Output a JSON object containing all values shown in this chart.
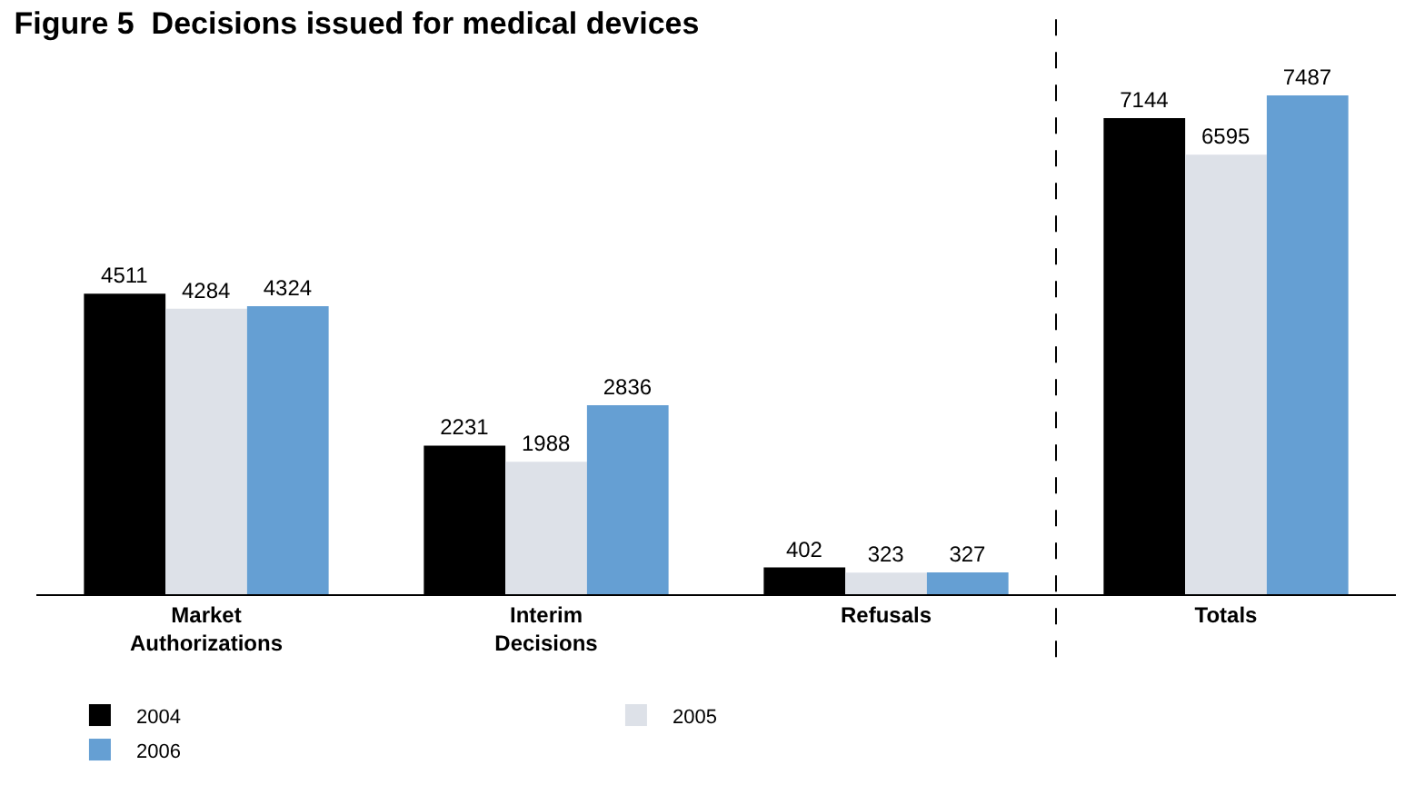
{
  "chart_data": {
    "type": "bar",
    "title": "Figure 5  Decisions issued for medical devices",
    "categories": [
      "Market Authorizations",
      "Interim Decisions",
      "Refusals",
      "Totals"
    ],
    "series": [
      {
        "name": "2004",
        "color": "#000000",
        "values": [
          4511,
          2231,
          402,
          7144
        ]
      },
      {
        "name": "2005",
        "color": "#dde1e8",
        "values": [
          4284,
          1988,
          323,
          6595
        ]
      },
      {
        "name": "2006",
        "color": "#659fd3",
        "values": [
          4324,
          2836,
          327,
          7487
        ]
      }
    ],
    "data_labels": true,
    "legend": "bottom left"
  }
}
